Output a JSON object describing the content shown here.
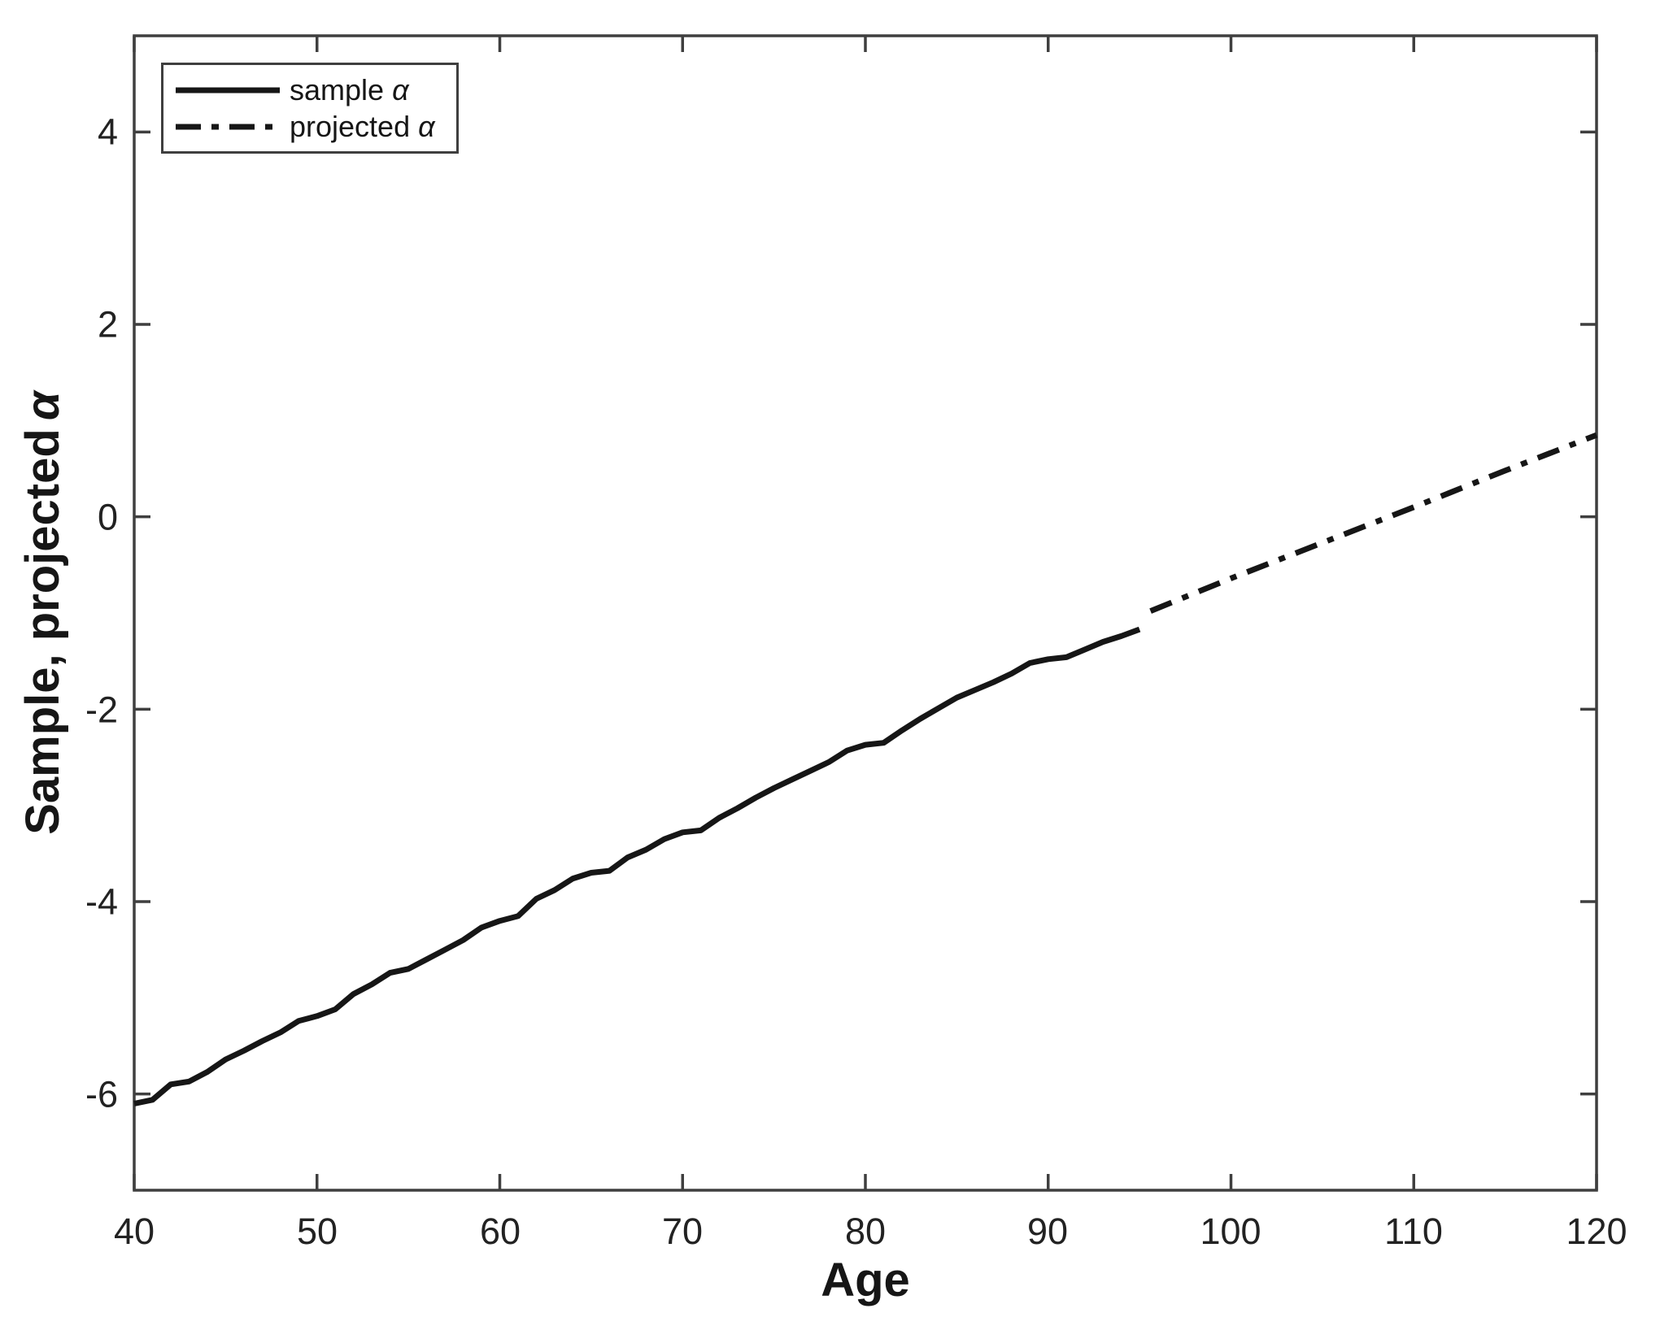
{
  "figure": {
    "background": "#ffffff",
    "line_color": "#161616",
    "axis_color": "#3f3f3f",
    "text_color": "#222222"
  },
  "labels": {
    "xlabel": "Age",
    "ylabel_prefix": "Sample, projected",
    "alpha": "α"
  },
  "legend": {
    "items": [
      {
        "prefix": "sample",
        "symbol": "α",
        "line_style": "solid"
      },
      {
        "prefix": "projected",
        "symbol": "α",
        "line_style": "dash-dot"
      }
    ]
  },
  "chart_data": {
    "type": "line",
    "title": "",
    "xlabel": "Age",
    "ylabel": "Sample, projected α",
    "xlim": [
      40,
      120
    ],
    "ylim": [
      -7,
      5
    ],
    "x_ticks": [
      40,
      50,
      60,
      70,
      80,
      90,
      100,
      110,
      120
    ],
    "y_ticks": [
      -6,
      -4,
      -2,
      0,
      2,
      4
    ],
    "grid": false,
    "legend_position": "top-left",
    "series": [
      {
        "name": "sample α",
        "line_style": "solid",
        "color": "#161616",
        "x": [
          40,
          41,
          42,
          43,
          44,
          45,
          46,
          47,
          48,
          49,
          50,
          51,
          52,
          53,
          54,
          55,
          56,
          57,
          58,
          59,
          60,
          61,
          62,
          63,
          64,
          65,
          66,
          67,
          68,
          69,
          70,
          71,
          72,
          73,
          74,
          75,
          76,
          77,
          78,
          79,
          80,
          81,
          82,
          83,
          84,
          85,
          86,
          87,
          88,
          89,
          90,
          91,
          92,
          93,
          94,
          95
        ],
        "y": [
          -6.1,
          -6.06,
          -5.9,
          -5.87,
          -5.77,
          -5.64,
          -5.55,
          -5.45,
          -5.36,
          -5.24,
          -5.19,
          -5.12,
          -4.96,
          -4.86,
          -4.74,
          -4.7,
          -4.6,
          -4.5,
          -4.4,
          -4.27,
          -4.2,
          -4.15,
          -3.97,
          -3.88,
          -3.76,
          -3.7,
          -3.68,
          -3.54,
          -3.46,
          -3.35,
          -3.28,
          -3.26,
          -3.13,
          -3.03,
          -2.92,
          -2.82,
          -2.73,
          -2.64,
          -2.55,
          -2.43,
          -2.37,
          -2.35,
          -2.22,
          -2.1,
          -1.99,
          -1.88,
          -1.8,
          -1.72,
          -1.63,
          -1.52,
          -1.48,
          -1.46,
          -1.38,
          -1.3,
          -1.24,
          -1.17
        ]
      },
      {
        "name": "projected α",
        "line_style": "dash-dot",
        "color": "#161616",
        "x": [
          95.6,
          100,
          105,
          110,
          115,
          120
        ],
        "y": [
          -0.98,
          -0.64,
          -0.27,
          0.1,
          0.48,
          0.85
        ]
      }
    ]
  }
}
